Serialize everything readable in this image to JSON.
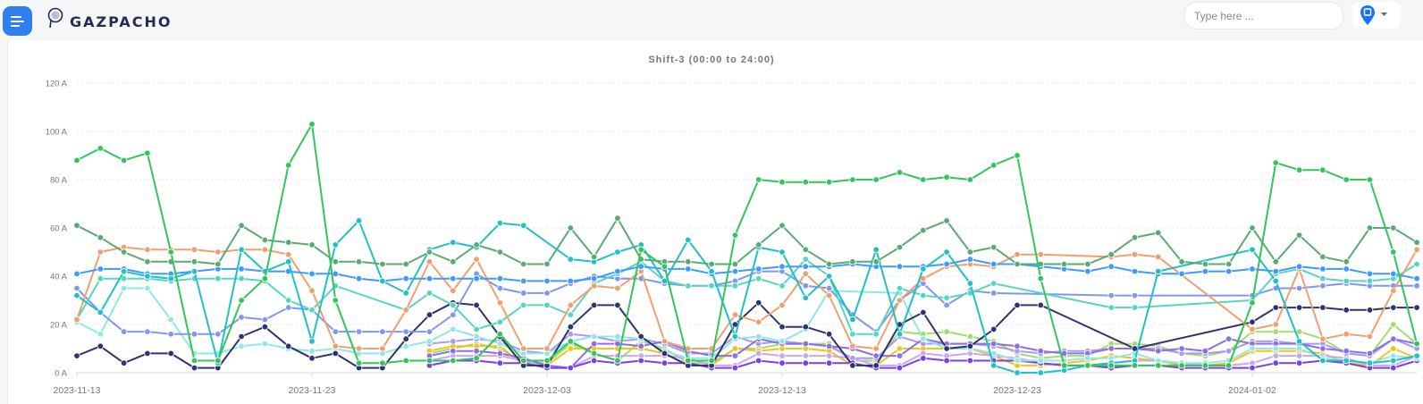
{
  "header": {
    "brand": "GAZPACHO",
    "search_placeholder": "Type here ...",
    "accent": "#2f7ff0",
    "icons": [
      "menu-icon",
      "logo-icon",
      "location-pin-icon",
      "caret-down-icon"
    ]
  },
  "chart_data": {
    "type": "line",
    "title": "Shift-3 (00:00 to 24:00)",
    "xlabel": "",
    "ylabel": "",
    "ylim": [
      0,
      120
    ],
    "yticks": [
      "0 A",
      "20 A",
      "40 A",
      "60 A",
      "80 A",
      "100 A",
      "120 A"
    ],
    "ytick_values": [
      0,
      20,
      40,
      60,
      80,
      100,
      120
    ],
    "xticks": [
      "2023-11-13",
      "2023-11-23",
      "2023-12-03",
      "2023-12-13",
      "2023-12-23",
      "2024-01-02"
    ],
    "x_start": "2023-11-13",
    "x_end": "2024-01-09",
    "grid": true,
    "legend": "none",
    "series": [
      {
        "color": "#9de06a",
        "values": [
          null,
          null,
          null,
          null,
          null,
          null,
          null,
          null,
          null,
          null,
          null,
          null,
          null,
          null,
          null,
          8,
          10,
          12,
          10,
          4,
          4,
          12,
          8,
          5,
          13,
          10,
          4,
          4,
          10,
          10,
          12,
          12,
          12,
          5,
          5,
          17,
          16,
          17,
          15,
          13,
          8,
          6,
          7,
          7,
          12,
          12,
          11,
          8,
          7,
          9,
          17,
          17,
          17,
          14,
          8,
          7,
          20,
          12
        ]
      },
      {
        "color": "#f5c21a",
        "values": [
          null,
          null,
          null,
          null,
          null,
          null,
          null,
          null,
          null,
          null,
          null,
          null,
          null,
          null,
          null,
          9,
          11,
          11,
          11,
          3,
          3,
          10,
          10,
          10,
          10,
          8,
          3,
          3,
          10,
          9,
          10,
          10,
          9,
          3,
          3,
          10,
          10,
          10,
          10,
          7,
          3,
          3,
          4,
          5,
          7,
          6,
          5,
          3,
          3,
          4,
          9,
          9,
          9,
          8,
          4,
          3,
          10,
          6
        ]
      },
      {
        "color": "#c9a6f5",
        "values": [
          null,
          null,
          null,
          null,
          null,
          null,
          null,
          null,
          null,
          null,
          null,
          null,
          null,
          null,
          null,
          5,
          7,
          7,
          7,
          5,
          2,
          2,
          7,
          7,
          7,
          7,
          6,
          3,
          3,
          8,
          7,
          7,
          7,
          6,
          3,
          3,
          8,
          7,
          8,
          7,
          6,
          4,
          3,
          3,
          4,
          5,
          5,
          4,
          3,
          3,
          4,
          7,
          7,
          7,
          6,
          3,
          3,
          7
        ]
      },
      {
        "color": "#a99af0",
        "values": [
          null,
          null,
          null,
          null,
          null,
          null,
          null,
          null,
          null,
          null,
          null,
          null,
          null,
          null,
          null,
          12,
          13,
          14,
          13,
          9,
          8,
          16,
          15,
          13,
          14,
          12,
          8,
          8,
          15,
          12,
          13,
          12,
          11,
          6,
          6,
          15,
          12,
          12,
          12,
          11,
          9,
          8,
          9,
          9,
          10,
          10,
          10,
          8,
          8,
          9,
          13,
          13,
          12,
          12,
          8,
          7,
          14,
          10
        ]
      },
      {
        "color": "#8c6ee6",
        "values": [
          null,
          null,
          null,
          null,
          null,
          null,
          null,
          null,
          null,
          null,
          null,
          null,
          null,
          null,
          null,
          7,
          9,
          9,
          8,
          6,
          3,
          2,
          12,
          12,
          11,
          13,
          9,
          7,
          7,
          14,
          12,
          12,
          11,
          10,
          7,
          7,
          14,
          12,
          12,
          12,
          11,
          9,
          8,
          8,
          10,
          10,
          9,
          10,
          9,
          14,
          12,
          12,
          12,
          10,
          9,
          8,
          14,
          12
        ]
      },
      {
        "color": "#7a3fe8",
        "values": [
          null,
          null,
          null,
          null,
          null,
          null,
          null,
          null,
          null,
          null,
          null,
          null,
          null,
          null,
          null,
          3,
          5,
          5,
          4,
          4,
          2,
          2,
          5,
          4,
          5,
          4,
          4,
          2,
          2,
          5,
          4,
          4,
          4,
          4,
          2,
          2,
          6,
          5,
          5,
          5,
          5,
          4,
          3,
          3,
          2,
          3,
          3,
          2,
          2,
          2,
          2,
          4,
          4,
          5,
          4,
          2,
          2,
          5
        ]
      },
      {
        "color": "#8ee8e3",
        "values": [
          21,
          16,
          35,
          35,
          22,
          8,
          8,
          11,
          12,
          10,
          9,
          10,
          8,
          8,
          11,
          13,
          18,
          15,
          12,
          8,
          8,
          13,
          15,
          15,
          14,
          9,
          6,
          6,
          14,
          15,
          13,
          18,
          34,
          null,
          null,
          33,
          14,
          10,
          10,
          8,
          5,
          5,
          5,
          6,
          6,
          8,
          5,
          4,
          4,
          5,
          10,
          10,
          10,
          6,
          5,
          4,
          7,
          6
        ]
      },
      {
        "color": "#2d3470",
        "values": [
          7,
          11,
          4,
          8,
          8,
          2,
          2,
          15,
          19,
          11,
          6,
          8,
          2,
          2,
          14,
          24,
          29,
          28,
          15,
          3,
          3,
          19,
          28,
          28,
          15,
          8,
          3,
          3,
          20,
          29,
          19,
          19,
          16,
          3,
          3,
          20,
          25,
          10,
          11,
          18,
          28,
          28,
          null,
          null,
          null,
          10,
          null,
          null,
          null,
          null,
          21,
          27,
          27,
          27,
          26,
          26,
          27,
          27
        ]
      },
      {
        "color": "#7f98ee",
        "values": [
          35,
          25,
          17,
          17,
          16,
          16,
          16,
          23,
          22,
          27,
          26,
          17,
          17,
          17,
          17,
          17,
          24,
          41,
          35,
          33,
          33,
          37,
          40,
          39,
          39,
          37,
          36,
          36,
          38,
          42,
          42,
          36,
          35,
          24,
          17,
          30,
          37,
          28,
          34,
          33,
          null,
          null,
          null,
          null,
          32,
          32,
          null,
          null,
          null,
          null,
          32,
          35,
          35,
          36,
          37,
          36,
          36,
          36
        ]
      },
      {
        "color": "#55d6c2",
        "values": [
          22,
          39,
          39,
          39,
          38,
          39,
          39,
          39,
          38,
          30,
          26,
          36,
          null,
          null,
          26,
          33,
          28,
          18,
          21,
          28,
          28,
          24,
          37,
          41,
          46,
          38,
          36,
          36,
          36,
          39,
          36,
          47,
          40,
          16,
          16,
          35,
          32,
          31,
          33,
          37,
          null,
          null,
          null,
          null,
          27,
          27,
          null,
          null,
          null,
          null,
          30,
          41,
          43,
          39,
          38,
          38,
          39,
          45
        ]
      },
      {
        "color": "#f0a070",
        "values": [
          22,
          50,
          52,
          51,
          51,
          51,
          50,
          51,
          51,
          49,
          34,
          11,
          10,
          10,
          26,
          46,
          34,
          47,
          29,
          10,
          10,
          28,
          36,
          35,
          42,
          13,
          10,
          10,
          24,
          21,
          28,
          41,
          32,
          11,
          10,
          30,
          39,
          44,
          45,
          44,
          49,
          49,
          null,
          null,
          48,
          49,
          48,
          null,
          null,
          null,
          18,
          20,
          43,
          14,
          16,
          15,
          34,
          51
        ]
      },
      {
        "color": "#3d9bff",
        "values": [
          41,
          43,
          43,
          41,
          41,
          42,
          43,
          43,
          42,
          42,
          41,
          41,
          39,
          38,
          39,
          39,
          39,
          39,
          39,
          38,
          38,
          38,
          39,
          42,
          44,
          43,
          43,
          41,
          42,
          43,
          44,
          44,
          44,
          45,
          44,
          44,
          44,
          45,
          47,
          45,
          45,
          44,
          43,
          42,
          44,
          42,
          41,
          41,
          42,
          42,
          43,
          42,
          44,
          43,
          43,
          41,
          41,
          39
        ]
      },
      {
        "color": "#1fc0c6",
        "values": [
          32,
          25,
          42,
          40,
          39,
          42,
          4,
          51,
          42,
          46,
          13,
          53,
          63,
          38,
          33,
          51,
          54,
          52,
          62,
          61,
          null,
          47,
          46,
          50,
          53,
          38,
          55,
          42,
          15,
          52,
          50,
          31,
          40,
          22,
          51,
          16,
          43,
          50,
          37,
          3,
          0,
          0,
          1,
          3,
          4,
          5,
          42,
          null,
          null,
          null,
          51,
          38,
          13,
          5,
          5,
          4,
          5,
          7
        ]
      },
      {
        "color": "#5aaa72",
        "values": [
          61,
          56,
          50,
          46,
          46,
          46,
          45,
          61,
          55,
          54,
          53,
          46,
          46,
          45,
          45,
          50,
          46,
          53,
          50,
          45,
          45,
          60,
          48,
          64,
          47,
          46,
          46,
          45,
          45,
          53,
          61,
          51,
          45,
          46,
          46,
          52,
          59,
          63,
          50,
          52,
          45,
          45,
          45,
          45,
          49,
          56,
          58,
          46,
          45,
          45,
          60,
          46,
          57,
          48,
          46,
          60,
          60,
          54
        ]
      },
      {
        "color": "#33c45a",
        "values": [
          88,
          93,
          88,
          91,
          50,
          5,
          5,
          30,
          39,
          86,
          103,
          30,
          4,
          4,
          5,
          5,
          5,
          6,
          16,
          5,
          5,
          13,
          8,
          5,
          51,
          44,
          5,
          5,
          57,
          80,
          79,
          79,
          79,
          80,
          80,
          83,
          80,
          81,
          80,
          86,
          90,
          39,
          3,
          3,
          3,
          3,
          3,
          3,
          3,
          3,
          29,
          87,
          84,
          84,
          80,
          80,
          50,
          12
        ]
      }
    ]
  }
}
